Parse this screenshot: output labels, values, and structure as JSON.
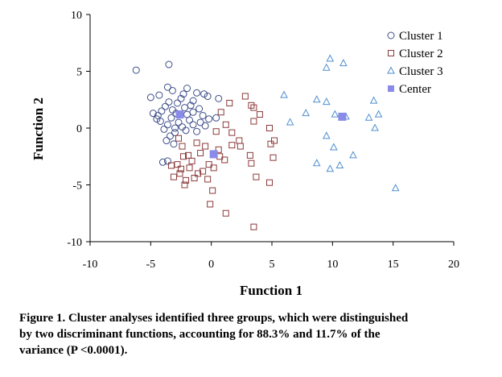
{
  "chart_data": {
    "type": "scatter",
    "title": "",
    "xlabel": "Function 1",
    "ylabel": "Function 2",
    "xlim": [
      -10,
      20
    ],
    "ylim": [
      -10,
      10
    ],
    "xticks": [
      "-10",
      "-5",
      "0",
      "5",
      "10",
      "15",
      "20"
    ],
    "yticks": [
      "10",
      "5",
      "0",
      "-5",
      "-10"
    ],
    "grid": false,
    "legend_position": "top-right",
    "series": [
      {
        "name": "Cluster 1",
        "marker": "open-circle",
        "color": "#3d4e8a",
        "points": [
          [
            -6.2,
            5.1
          ],
          [
            -3.5,
            5.6
          ],
          [
            -5.0,
            2.7
          ],
          [
            -4.3,
            2.9
          ],
          [
            -3.6,
            3.6
          ],
          [
            -3.2,
            3.3
          ],
          [
            -2.0,
            3.5
          ],
          [
            -1.2,
            3.1
          ],
          [
            -0.3,
            2.8
          ],
          [
            0.6,
            2.6
          ],
          [
            -4.8,
            1.3
          ],
          [
            -4.5,
            0.8
          ],
          [
            -4.1,
            1.5
          ],
          [
            -3.8,
            1.9
          ],
          [
            -3.5,
            2.3
          ],
          [
            -3.2,
            1.6
          ],
          [
            -2.8,
            2.2
          ],
          [
            -2.5,
            2.6
          ],
          [
            -2.2,
            1.8
          ],
          [
            -2.0,
            1.2
          ],
          [
            -1.7,
            2.0
          ],
          [
            -1.5,
            1.4
          ],
          [
            -1.0,
            1.7
          ],
          [
            -0.7,
            1.1
          ],
          [
            -0.2,
            0.8
          ],
          [
            -4.2,
            0.6
          ],
          [
            -3.9,
            -0.1
          ],
          [
            -3.6,
            0.3
          ],
          [
            -3.3,
            0.9
          ],
          [
            -3.0,
            -0.4
          ],
          [
            -2.7,
            0.5
          ],
          [
            -2.4,
            0.1
          ],
          [
            -2.1,
            -0.2
          ],
          [
            -1.8,
            0.7
          ],
          [
            -1.5,
            0.3
          ],
          [
            -1.2,
            -0.3
          ],
          [
            -0.9,
            0.5
          ],
          [
            -0.5,
            0.2
          ],
          [
            -3.7,
            -1.1
          ],
          [
            -3.4,
            -0.7
          ],
          [
            -3.1,
            -1.4
          ],
          [
            -4.0,
            -3.0
          ],
          [
            -3.6,
            -2.9
          ],
          [
            0.4,
            0.9
          ],
          [
            -2.3,
            3.0
          ],
          [
            -1.5,
            2.4
          ],
          [
            -4.4,
            1.1
          ],
          [
            -2.9,
            1.3
          ],
          [
            -0.6,
            3.0
          ],
          [
            -3.0,
            0.0
          ]
        ]
      },
      {
        "name": "Cluster 2",
        "marker": "open-square",
        "color": "#8b3a3a",
        "points": [
          [
            2.8,
            2.8
          ],
          [
            1.5,
            2.2
          ],
          [
            3.3,
            2.0
          ],
          [
            3.5,
            1.8
          ],
          [
            4.0,
            1.2
          ],
          [
            0.8,
            1.4
          ],
          [
            1.2,
            0.3
          ],
          [
            0.4,
            -0.3
          ],
          [
            3.5,
            0.6
          ],
          [
            4.8,
            0.0
          ],
          [
            1.7,
            -0.4
          ],
          [
            2.3,
            -1.1
          ],
          [
            1.7,
            -1.5
          ],
          [
            2.4,
            -1.6
          ],
          [
            4.9,
            -1.4
          ],
          [
            5.2,
            -1.1
          ],
          [
            -2.7,
            -0.9
          ],
          [
            -2.4,
            -1.6
          ],
          [
            -1.2,
            -1.3
          ],
          [
            -0.9,
            -2.2
          ],
          [
            -0.5,
            -1.6
          ],
          [
            0.6,
            -1.9
          ],
          [
            1.1,
            -2.8
          ],
          [
            3.2,
            -2.4
          ],
          [
            -1.9,
            -2.4
          ],
          [
            -2.3,
            -2.5
          ],
          [
            -2.8,
            -3.2
          ],
          [
            -2.5,
            -3.6
          ],
          [
            -3.3,
            -3.3
          ],
          [
            -3.1,
            -4.3
          ],
          [
            -2.6,
            -4.0
          ],
          [
            -2.1,
            -4.6
          ],
          [
            -1.8,
            -3.5
          ],
          [
            -1.4,
            -4.4
          ],
          [
            -1.1,
            -4.0
          ],
          [
            -0.7,
            -3.8
          ],
          [
            -0.2,
            -3.2
          ],
          [
            0.2,
            -3.5
          ],
          [
            -0.3,
            -4.5
          ],
          [
            0.1,
            -5.5
          ],
          [
            -2.2,
            -5.0
          ],
          [
            -0.1,
            -6.7
          ],
          [
            1.2,
            -7.5
          ],
          [
            3.5,
            -8.7
          ],
          [
            3.3,
            -3.1
          ],
          [
            3.7,
            -4.3
          ],
          [
            4.8,
            -4.8
          ],
          [
            5.1,
            -2.6
          ],
          [
            -1.6,
            -2.9
          ],
          [
            0.7,
            -2.5
          ]
        ]
      },
      {
        "name": "Cluster 3",
        "marker": "open-triangle",
        "color": "#4f8fcf",
        "points": [
          [
            9.8,
            6.1
          ],
          [
            10.9,
            5.7
          ],
          [
            9.5,
            5.3
          ],
          [
            8.7,
            2.5
          ],
          [
            9.5,
            2.3
          ],
          [
            13.4,
            2.4
          ],
          [
            7.8,
            1.3
          ],
          [
            10.2,
            1.2
          ],
          [
            11.1,
            1.0
          ],
          [
            13.0,
            0.9
          ],
          [
            13.8,
            1.2
          ],
          [
            6.5,
            0.5
          ],
          [
            13.5,
            0.0
          ],
          [
            9.5,
            -0.7
          ],
          [
            10.1,
            -1.7
          ],
          [
            11.7,
            -2.4
          ],
          [
            8.7,
            -3.1
          ],
          [
            9.8,
            -3.6
          ],
          [
            10.6,
            -3.3
          ],
          [
            15.2,
            -5.3
          ],
          [
            6.0,
            2.9
          ]
        ]
      },
      {
        "name": "Center",
        "marker": "filled-square",
        "color": "#8a8ae8",
        "points": [
          [
            -2.6,
            1.2
          ],
          [
            0.2,
            -2.3
          ],
          [
            10.8,
            1.0
          ]
        ]
      }
    ]
  },
  "caption": {
    "lines": [
      "Figure 1. Cluster analyses identified three groups, which were distinguished",
      "by two discriminant functions, accounting for 88.3% and 11.7% of the",
      "variance (P <0.0001)."
    ]
  }
}
